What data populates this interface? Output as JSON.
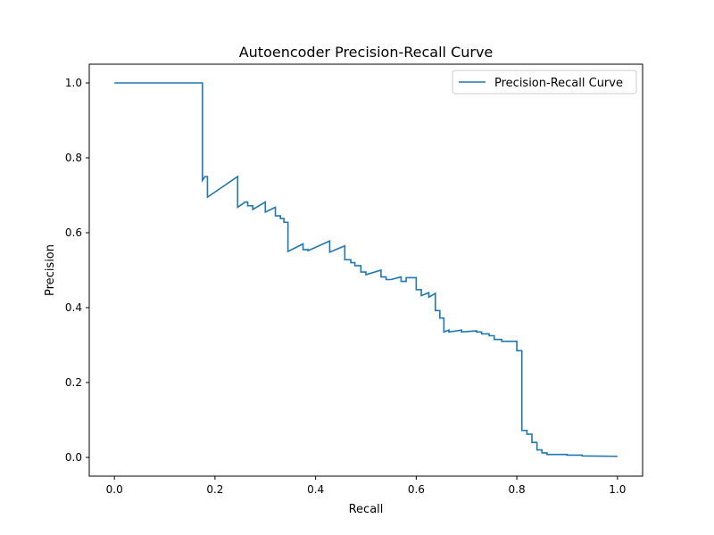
{
  "chart_data": {
    "type": "line",
    "title": "Autoencoder Precision-Recall Curve",
    "xlabel": "Recall",
    "ylabel": "Precision",
    "xlim": [
      -0.05,
      1.05
    ],
    "ylim": [
      -0.05,
      1.05
    ],
    "xticks": [
      0.0,
      0.2,
      0.4,
      0.6,
      0.8,
      1.0
    ],
    "xtick_labels": [
      "0.0",
      "0.2",
      "0.4",
      "0.6",
      "0.8",
      "1.0"
    ],
    "yticks": [
      0.0,
      0.2,
      0.4,
      0.6,
      0.8,
      1.0
    ],
    "ytick_labels": [
      "0.0",
      "0.2",
      "0.4",
      "0.6",
      "0.8",
      "1.0"
    ],
    "grid": false,
    "legend_position": "upper-right",
    "series": [
      {
        "name": "Precision-Recall Curve",
        "color": "#1f77b4",
        "x": [
          0.0,
          0.175,
          0.175,
          0.18,
          0.185,
          0.185,
          0.245,
          0.245,
          0.26,
          0.265,
          0.265,
          0.27,
          0.275,
          0.275,
          0.3,
          0.3,
          0.32,
          0.32,
          0.33,
          0.33,
          0.337,
          0.337,
          0.345,
          0.345,
          0.375,
          0.375,
          0.38,
          0.385,
          0.385,
          0.428,
          0.428,
          0.458,
          0.458,
          0.465,
          0.47,
          0.47,
          0.478,
          0.478,
          0.49,
          0.49,
          0.5,
          0.5,
          0.53,
          0.53,
          0.54,
          0.54,
          0.55,
          0.55,
          0.57,
          0.57,
          0.58,
          0.58,
          0.6,
          0.6,
          0.61,
          0.61,
          0.625,
          0.625,
          0.638,
          0.638,
          0.647,
          0.647,
          0.655,
          0.655,
          0.665,
          0.665,
          0.69,
          0.69,
          0.72,
          0.72,
          0.73,
          0.73,
          0.745,
          0.745,
          0.755,
          0.755,
          0.77,
          0.77,
          0.8,
          0.8,
          0.81,
          0.81,
          0.82,
          0.82,
          0.83,
          0.83,
          0.84,
          0.84,
          0.85,
          0.85,
          0.86,
          0.86,
          0.9,
          0.9,
          0.93,
          0.93,
          1.0
        ],
        "y": [
          1.0,
          1.0,
          0.74,
          0.75,
          0.75,
          0.695,
          0.75,
          0.668,
          0.682,
          0.682,
          0.672,
          0.672,
          0.672,
          0.662,
          0.682,
          0.655,
          0.668,
          0.645,
          0.645,
          0.638,
          0.638,
          0.628,
          0.628,
          0.55,
          0.57,
          0.555,
          0.555,
          0.555,
          0.552,
          0.578,
          0.548,
          0.565,
          0.528,
          0.528,
          0.528,
          0.52,
          0.52,
          0.512,
          0.512,
          0.495,
          0.495,
          0.488,
          0.5,
          0.482,
          0.482,
          0.475,
          0.475,
          0.475,
          0.482,
          0.47,
          0.47,
          0.48,
          0.48,
          0.448,
          0.448,
          0.432,
          0.44,
          0.428,
          0.438,
          0.392,
          0.392,
          0.372,
          0.372,
          0.335,
          0.34,
          0.335,
          0.34,
          0.335,
          0.338,
          0.335,
          0.335,
          0.33,
          0.33,
          0.325,
          0.325,
          0.315,
          0.315,
          0.31,
          0.31,
          0.285,
          0.285,
          0.072,
          0.072,
          0.062,
          0.062,
          0.04,
          0.04,
          0.02,
          0.02,
          0.012,
          0.012,
          0.008,
          0.008,
          0.006,
          0.006,
          0.004,
          0.003
        ]
      }
    ]
  }
}
